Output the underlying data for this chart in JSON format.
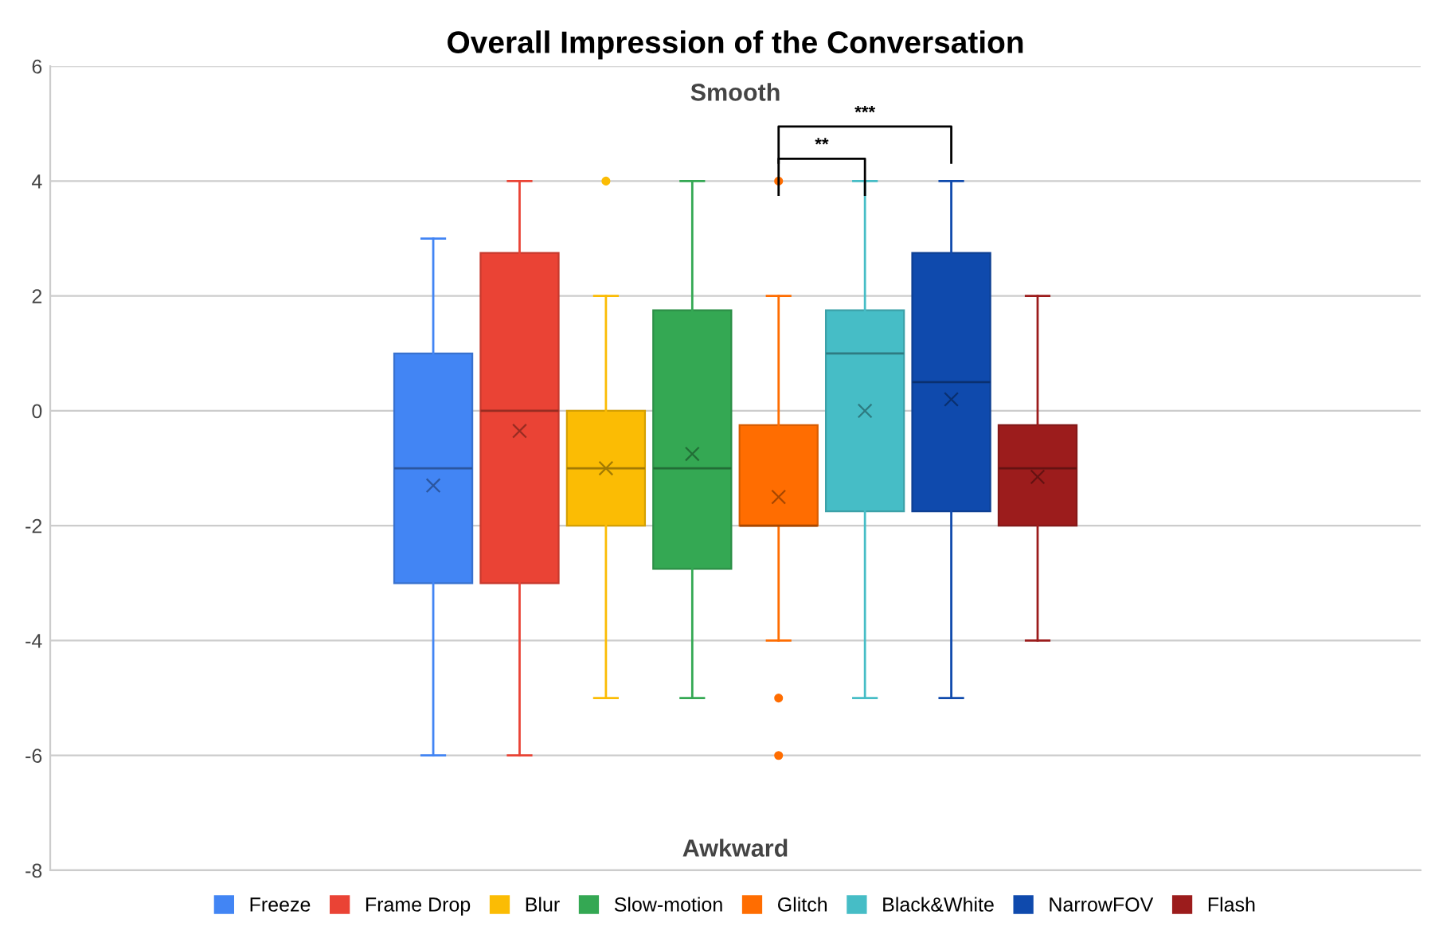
{
  "chart_data": {
    "type": "box",
    "title": "Overall Impression of the Conversation",
    "categories": [
      null
    ],
    "series": [
      {
        "name": "Freeze",
        "color": "#4285f4",
        "boxes": [
          {
            "low": -6,
            "q1": -3,
            "median": -1,
            "q3": 1,
            "high": 3,
            "mean": -1.3
          }
        ]
      },
      {
        "name": "Frame Drop",
        "color": "#ea4335",
        "boxes": [
          {
            "low": -6,
            "q1": -3,
            "median": 0,
            "q3": 2.75,
            "high": 4,
            "mean": -0.35
          }
        ]
      },
      {
        "name": "Blur",
        "color": "#fbbc04",
        "boxes": [
          {
            "low": -5,
            "q1": -2,
            "median": -1,
            "q3": 0,
            "high": 2,
            "mean": -1,
            "outliers": [
              4
            ]
          }
        ]
      },
      {
        "name": "Slow-motion",
        "color": "#34a853",
        "boxes": [
          {
            "low": -5,
            "q1": -2.75,
            "median": -1,
            "q3": 1.75,
            "high": 4,
            "mean": -0.75
          }
        ]
      },
      {
        "name": "Glitch",
        "color": "#ff6d01",
        "boxes": [
          {
            "low": -4,
            "q1": -2,
            "median": -2,
            "q3": -0.25,
            "high": 2,
            "mean": -1.5,
            "outliers": [
              4,
              -5,
              -6
            ]
          }
        ]
      },
      {
        "name": "Black&White",
        "color": "#46bdc6",
        "boxes": [
          {
            "low": -5,
            "q1": -1.75,
            "median": 1,
            "q3": 1.75,
            "high": 4,
            "mean": 0
          }
        ]
      },
      {
        "name": "NarrowFOV",
        "color": "#0f4aad",
        "boxes": [
          {
            "low": -5,
            "q1": -1.75,
            "median": 0.5,
            "q3": 2.75,
            "high": 4,
            "mean": 0.2
          }
        ]
      },
      {
        "name": "Flash",
        "color": "#9c1c1c",
        "boxes": [
          {
            "low": -4,
            "q1": -2,
            "median": -1,
            "q3": -0.25,
            "high": 2,
            "mean": -1.15
          }
        ]
      }
    ],
    "ylim": [
      -8,
      6
    ],
    "yticks": [
      -8,
      -6,
      -4,
      -2,
      0,
      2,
      4,
      6
    ],
    "grid": "y",
    "legend": "bottom",
    "marker": "cross",
    "annotations": [
      "Smooth",
      "Awkward",
      "**",
      "***"
    ]
  }
}
